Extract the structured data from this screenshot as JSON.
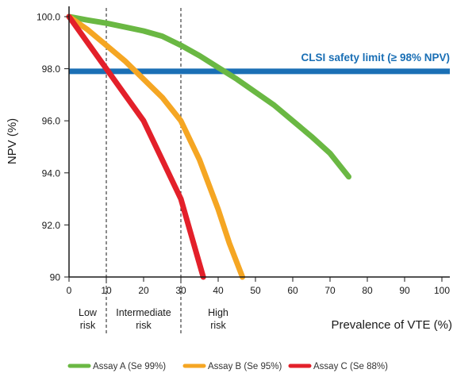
{
  "chart_data": {
    "type": "line",
    "xlabel": "Prevalence of VTE (%)",
    "ylabel": "NPV (%)",
    "xlim": [
      0,
      100
    ],
    "ylim": [
      90,
      100.3
    ],
    "x_ticks": [
      "0",
      "10",
      "20",
      "30",
      "40",
      "50",
      "60",
      "70",
      "80",
      "90",
      "100"
    ],
    "x_tick_values": [
      0,
      10,
      20,
      30,
      40,
      50,
      60,
      70,
      80,
      90,
      100
    ],
    "y_ticks": [
      "90",
      "92.0",
      "94.0",
      "96.0",
      "98.0",
      "100.0"
    ],
    "y_tick_values": [
      90,
      92,
      94,
      96,
      98,
      100
    ],
    "grid": false,
    "legend_position": "bottom-center",
    "reference_line": {
      "label": "CLSI safety limit (≥ 98% NPV)",
      "y": 97.9,
      "color": "#1a6fb5"
    },
    "zone_dividers": [
      10,
      30
    ],
    "zones": [
      {
        "line1": "Low",
        "line2": "risk",
        "x": 5
      },
      {
        "line1": "Intermediate",
        "line2": "risk",
        "x": 20
      },
      {
        "line1": "High",
        "line2": "risk",
        "x": 40
      }
    ],
    "series": [
      {
        "name": "Assay A (Se 99%)",
        "color": "#6ab843",
        "x": [
          0,
          5,
          10,
          15,
          20,
          25,
          30,
          35,
          40,
          45,
          50,
          55,
          60,
          65,
          70,
          75
        ],
        "y": [
          100.0,
          99.87,
          99.75,
          99.6,
          99.45,
          99.25,
          98.9,
          98.5,
          98.05,
          97.6,
          97.1,
          96.6,
          96.0,
          95.4,
          94.75,
          93.85
        ]
      },
      {
        "name": "Assay B (Se 95%)",
        "color": "#f5a623",
        "x": [
          0,
          5,
          10,
          15,
          20,
          25,
          30,
          35,
          40,
          43,
          46.5
        ],
        "y": [
          100.0,
          99.5,
          98.9,
          98.3,
          97.6,
          96.9,
          96.0,
          94.5,
          92.6,
          91.3,
          90.0
        ]
      },
      {
        "name": "Assay C (Se 88%)",
        "color": "#e3202a",
        "x": [
          0,
          5,
          10,
          15,
          20,
          25,
          30,
          33,
          36
        ],
        "y": [
          100.0,
          99.0,
          98.0,
          97.0,
          96.0,
          94.5,
          93.0,
          91.5,
          90.0
        ]
      }
    ]
  }
}
